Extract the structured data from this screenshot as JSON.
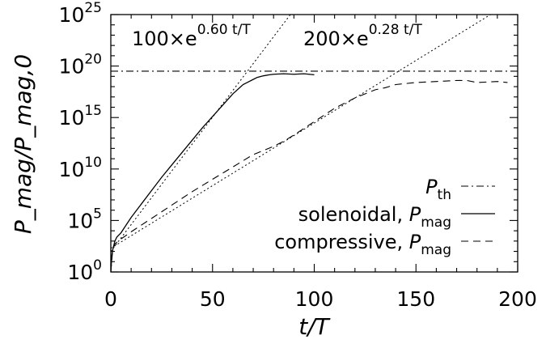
{
  "chart_data": {
    "type": "line",
    "xlabel": "t/T",
    "ylabel": "P_mag/P_mag,0",
    "xlim": [
      0,
      200
    ],
    "ylim_log10": [
      0,
      25
    ],
    "y_scale": "log",
    "x_ticks": [
      "0",
      "50",
      "100",
      "150",
      "200"
    ],
    "y_ticks": [
      {
        "base": "10",
        "exp": "0"
      },
      {
        "base": "10",
        "exp": "5"
      },
      {
        "base": "10",
        "exp": "10"
      },
      {
        "base": "10",
        "exp": "15"
      },
      {
        "base": "10",
        "exp": "20"
      },
      {
        "base": "10",
        "exp": "25"
      }
    ],
    "annotations": [
      {
        "prefix": "100×e",
        "exponent": "0.60 t/T"
      },
      {
        "prefix": "200×e",
        "exponent": "0.28 t/T"
      }
    ],
    "legend": {
      "placement": "bottom-right",
      "entries": [
        {
          "pre": "",
          "symbol": "P",
          "sub": "th",
          "style": "dashdot"
        },
        {
          "pre": "solenoidal, ",
          "symbol": "P",
          "sub": "mag",
          "style": "solid"
        },
        {
          "pre": "compressive, ",
          "symbol": "P",
          "sub": "mag",
          "style": "dashed"
        }
      ]
    },
    "series": [
      {
        "name": "P_th",
        "style": "dashdot",
        "x": [
          0,
          200
        ],
        "log10_y": [
          19.5,
          19.5
        ]
      },
      {
        "name": "solenoidal, P_mag",
        "style": "solid",
        "x": [
          0,
          0.5,
          1,
          2,
          3,
          4,
          5,
          7,
          10,
          15,
          20,
          25,
          30,
          35,
          40,
          45,
          50,
          55,
          60,
          65,
          68,
          70,
          72,
          75,
          78,
          80,
          85,
          90,
          95,
          100
        ],
        "log10_y": [
          0,
          1.6,
          2.2,
          3.0,
          3.4,
          3.6,
          3.8,
          4.4,
          5.3,
          6.6,
          7.9,
          9.2,
          10.4,
          11.6,
          12.8,
          14.0,
          15.1,
          16.2,
          17.3,
          18.2,
          18.5,
          18.7,
          18.9,
          19.05,
          19.15,
          19.2,
          19.25,
          19.2,
          19.25,
          19.15
        ]
      },
      {
        "name": "compressive, P_mag",
        "style": "dashed",
        "x": [
          0,
          1,
          2,
          3,
          5,
          10,
          20,
          30,
          40,
          50,
          60,
          70,
          75,
          80,
          85,
          90,
          100,
          110,
          120,
          130,
          135,
          140,
          150,
          160,
          170,
          175,
          180,
          190,
          195
        ],
        "log10_y": [
          0,
          2.3,
          2.7,
          2.9,
          3.2,
          3.9,
          5.2,
          6.5,
          7.8,
          9.0,
          10.2,
          11.4,
          11.8,
          12.2,
          12.7,
          13.3,
          14.6,
          15.9,
          16.9,
          17.7,
          17.9,
          18.2,
          18.4,
          18.5,
          18.6,
          18.6,
          18.4,
          18.5,
          18.4
        ]
      }
    ],
    "fit_lines": [
      {
        "label": "100×e^{0.60 t/T}",
        "style": "dotted",
        "log10_a": 2,
        "rate": 0.6
      },
      {
        "label": "200×e^{0.28 t/T}",
        "style": "dotted",
        "log10_a": 2.301,
        "rate": 0.28
      }
    ]
  }
}
